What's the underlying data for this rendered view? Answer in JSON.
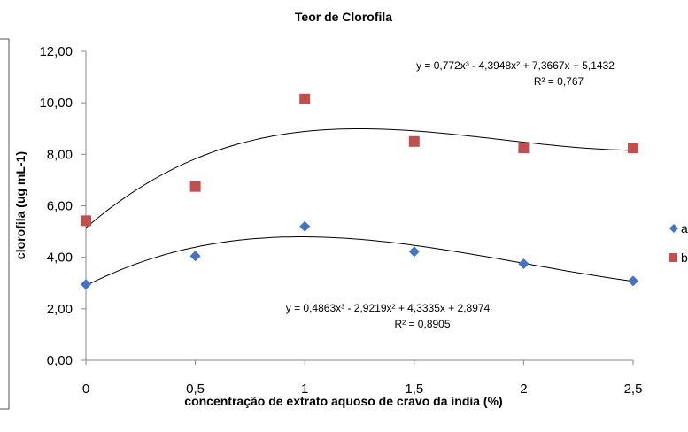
{
  "chart_data": {
    "type": "scatter",
    "title": "Teor de Clorofila",
    "xlabel": "concentração de extrato aquoso de cravo da índia (%)",
    "ylabel": "clorofila (ug mL-1)",
    "x": [
      0,
      0.5,
      1,
      1.5,
      2,
      2.5
    ],
    "x_tick_labels": [
      "0",
      "0,5",
      "1",
      "1,5",
      "2",
      "2,5"
    ],
    "xlim": [
      0,
      2.5
    ],
    "y_tick_labels": [
      "0,00",
      "2,00",
      "4,00",
      "6,00",
      "8,00",
      "10,00",
      "12,00"
    ],
    "ylim": [
      0,
      12
    ],
    "grid": false,
    "legend_position": "right",
    "series": [
      {
        "name": "a",
        "marker": "diamond",
        "color": "#4472C4",
        "values": [
          2.95,
          4.05,
          5.2,
          4.22,
          3.75,
          3.08
        ],
        "trendline": {
          "type": "polynomial-3",
          "coefficients": [
            0.4863,
            -2.9219,
            4.3335,
            2.8974
          ],
          "equation": "y = 0,4863x³ - 2,9219x² + 4,3335x + 2,8974",
          "r2": "R² = 0,8905"
        }
      },
      {
        "name": "b",
        "marker": "square",
        "color": "#C0504D",
        "values": [
          5.42,
          6.75,
          10.15,
          8.5,
          8.25,
          8.25
        ],
        "trendline": {
          "type": "polynomial-3",
          "coefficients": [
            0.772,
            -4.3948,
            7.3667,
            5.1432
          ],
          "equation": "y = 0,772x³ - 4,3948x² + 7,3667x + 5,1432",
          "r2": "R² = 0,767"
        }
      }
    ]
  }
}
